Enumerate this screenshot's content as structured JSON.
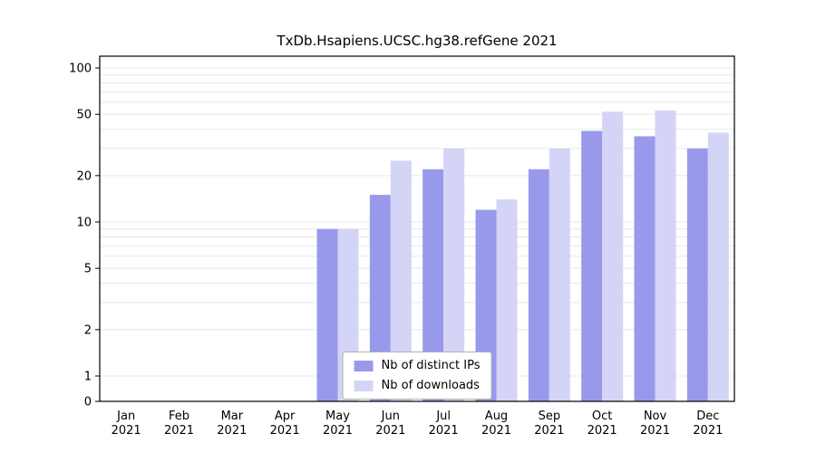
{
  "figure": {
    "title": "TxDb.Hsapiens.UCSC.hg38.refGene 2021",
    "background_color": "#ffffff"
  },
  "chart_data": {
    "type": "bar",
    "title": "TxDb.Hsapiens.UCSC.hg38.refGene 2021",
    "yscale": "log",
    "ylim": [
      0,
      100
    ],
    "yticks": [
      0,
      1,
      2,
      5,
      10,
      20,
      50,
      100
    ],
    "gridlines": [
      1,
      2,
      3,
      4,
      5,
      6,
      7,
      8,
      9,
      10,
      20,
      30,
      40,
      50,
      60,
      70,
      80,
      90,
      100
    ],
    "grid_color": "#e8e8e8",
    "axis_color": "#000000",
    "categories": [
      "Jan",
      "Feb",
      "Mar",
      "Apr",
      "May",
      "Jun",
      "Jul",
      "Aug",
      "Sep",
      "Oct",
      "Nov",
      "Dec"
    ],
    "category_year": "2021",
    "series": [
      {
        "name": "Nb of distinct IPs",
        "color": "#9999ec",
        "values": [
          0,
          0,
          0,
          0,
          9,
          15,
          22,
          12,
          22,
          39,
          36,
          30
        ]
      },
      {
        "name": "Nb of downloads",
        "color": "#d4d4f6",
        "values": [
          0,
          0,
          0,
          0,
          9,
          25,
          30,
          14,
          30,
          52,
          53,
          38
        ]
      }
    ],
    "legend_position": "bottom-center"
  },
  "legend": {
    "items": [
      {
        "label": "Nb of distinct IPs",
        "color": "#9999ec"
      },
      {
        "label": "Nb of downloads",
        "color": "#d4d4f6"
      }
    ]
  }
}
